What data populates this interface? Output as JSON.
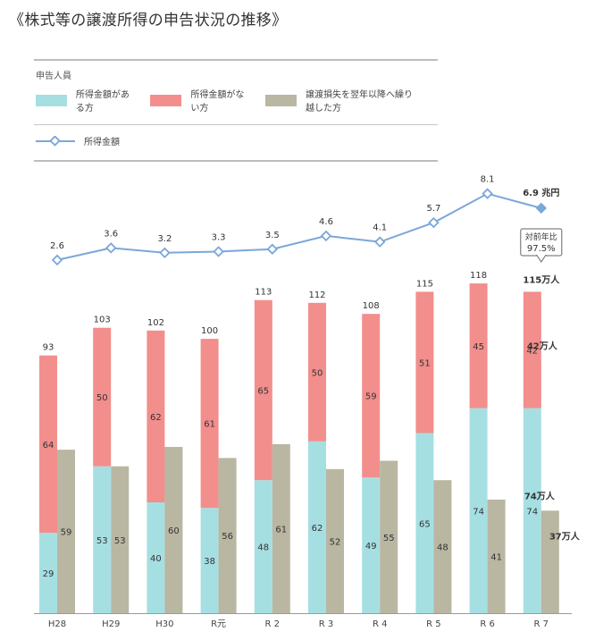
{
  "page": {
    "title": "《株式等の譲渡所得の申告状況の推移》"
  },
  "legend": {
    "header": "申告人員",
    "items": [
      {
        "label": "所得金額がある方",
        "color": "#a6dfe2"
      },
      {
        "label": "所得金額がない方",
        "color": "#f28e8c"
      },
      {
        "label": "譲渡損失を翌年以降へ繰り越した方",
        "color": "#b9b6a2"
      }
    ],
    "line_label": "所得金額",
    "line_color": "#7ba7d9"
  },
  "chart_data": {
    "type": "bar",
    "categories": [
      "H28",
      "H29",
      "H30",
      "R元",
      "R 2",
      "R 3",
      "R 4",
      "R 5",
      "R 6",
      "R 7"
    ],
    "stacked_series": [
      {
        "name": "所得金額がある方",
        "values": [
          29,
          53,
          40,
          38,
          48,
          62,
          49,
          65,
          74,
          74
        ]
      },
      {
        "name": "所得金額がない方",
        "values": [
          64,
          50,
          62,
          61,
          65,
          50,
          59,
          51,
          45,
          42
        ]
      }
    ],
    "stack_totals": [
      93,
      103,
      102,
      100,
      113,
      112,
      108,
      115,
      118,
      115
    ],
    "side_series": {
      "name": "譲渡損失を翌年以降へ繰り越した方",
      "values": [
        59,
        53,
        60,
        56,
        61,
        52,
        55,
        48,
        41,
        37
      ]
    },
    "line_series": {
      "name": "所得金額",
      "values": [
        2.6,
        3.6,
        3.2,
        3.3,
        3.5,
        4.6,
        4.1,
        5.7,
        8.1,
        6.9
      ]
    },
    "last_year_labels": {
      "line": "6.9 兆円",
      "total": "115万人",
      "red": "42万人",
      "cyan": "74万人",
      "side": "37万人"
    },
    "callout": {
      "line1": "対前年比",
      "line2": "97.5%"
    },
    "ylim_people": [
      0,
      120
    ],
    "ylim_amount": [
      0,
      9
    ]
  }
}
